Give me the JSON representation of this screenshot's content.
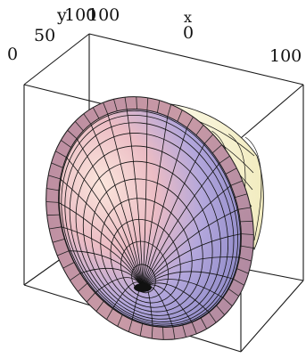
{
  "axis_labels": {
    "y": "y",
    "x": "x"
  },
  "tick_labels": {
    "y_0": "0",
    "y_50": "50",
    "y_100": "100",
    "top_100": "100",
    "x_0": "0",
    "x_100": "100"
  },
  "colors": {
    "edge": "#1a1a1a",
    "mesh": "#111111",
    "surface_light": "#f6d8cf",
    "surface_pink": "#d9a9b9",
    "surface_blue": "#9f9ed8",
    "surface_violet": "#7e78b8",
    "rim": "#c79aa6",
    "back_face": "#f3f0c8"
  }
}
